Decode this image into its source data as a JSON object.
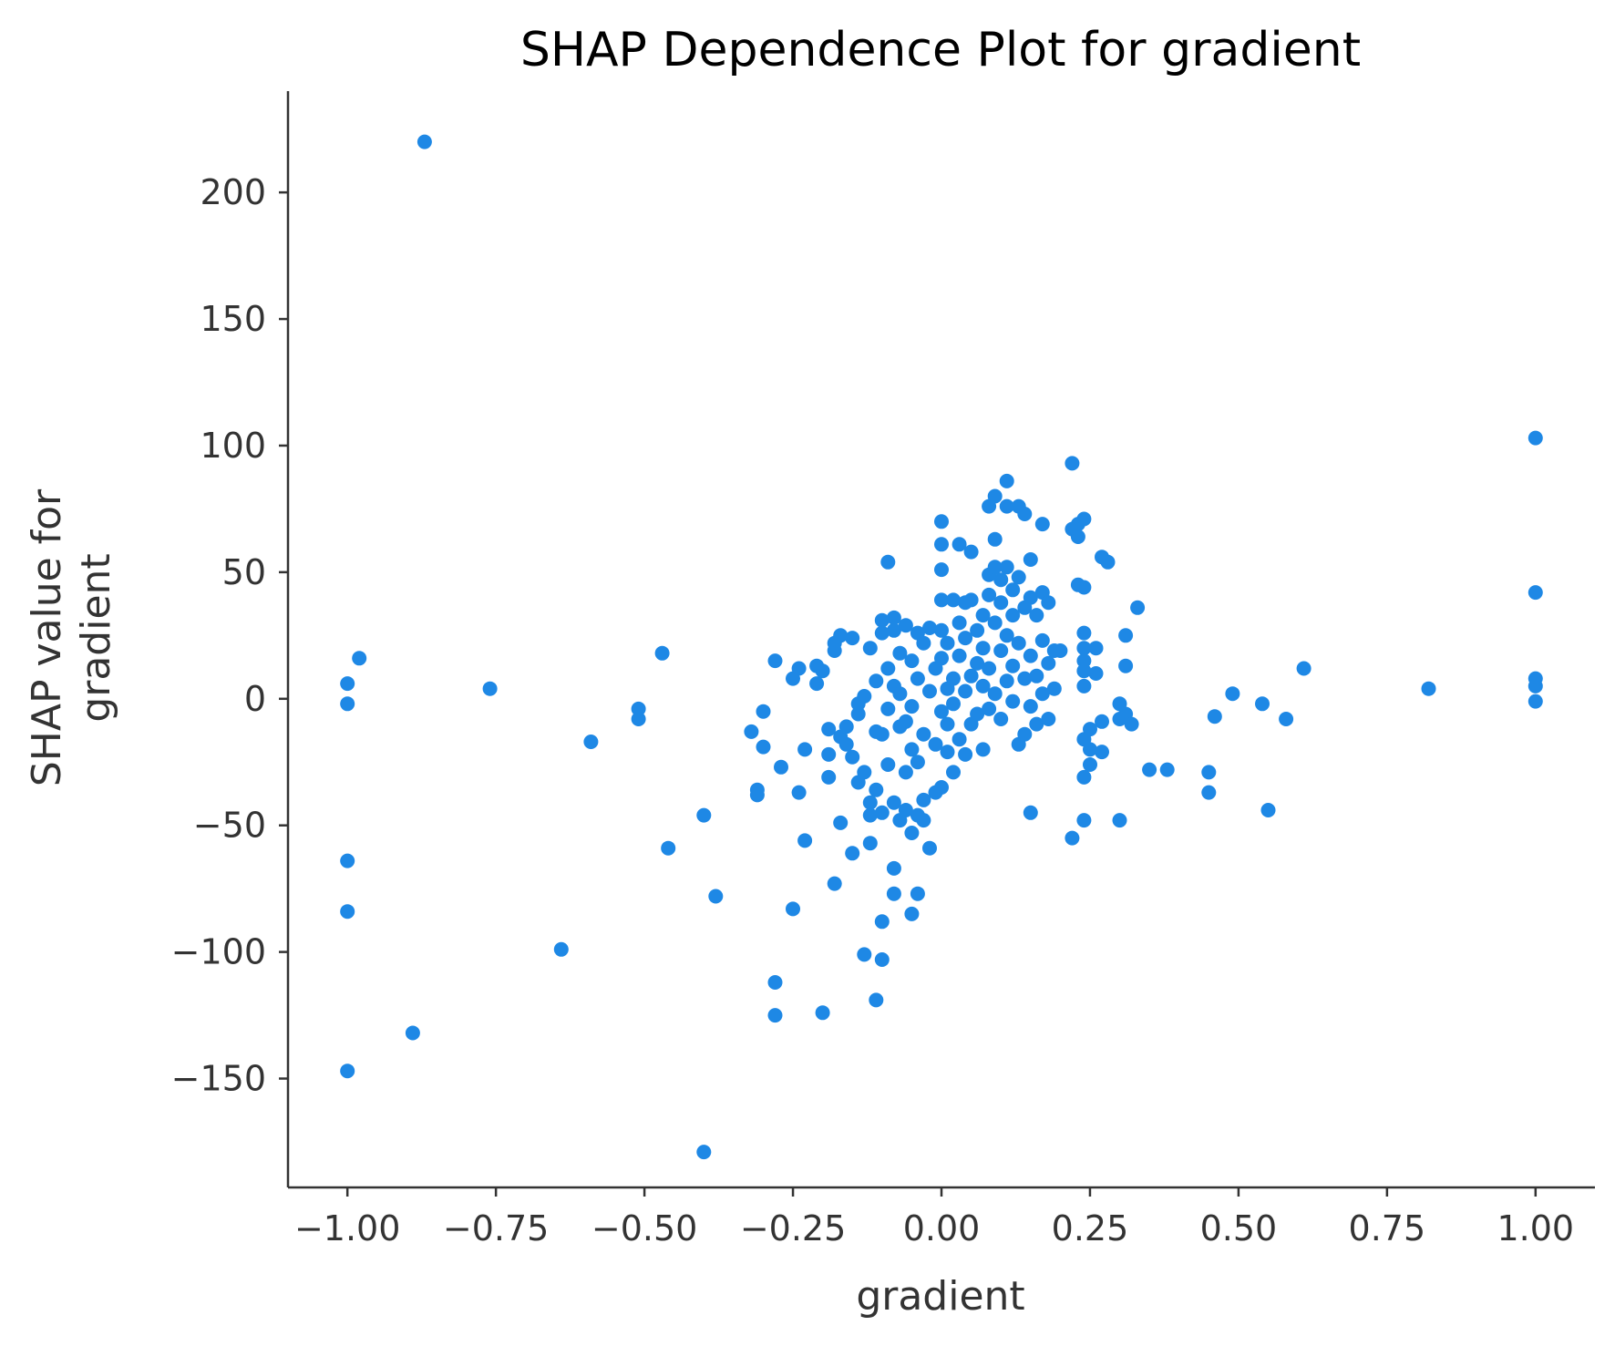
{
  "chart_data": {
    "type": "scatter",
    "title": "SHAP Dependence Plot for gradient",
    "xlabel": "gradient",
    "ylabel": [
      "SHAP value for",
      "gradient"
    ],
    "xlim": [
      -1.1,
      1.1
    ],
    "ylim": [
      -193,
      240
    ],
    "xticks": [
      -1.0,
      -0.75,
      -0.5,
      -0.25,
      0.0,
      0.25,
      0.5,
      0.75,
      1.0
    ],
    "xtick_labels": [
      "−1.00",
      "−0.75",
      "−0.50",
      "−0.25",
      "0.00",
      "0.25",
      "0.50",
      "0.75",
      "1.00"
    ],
    "yticks": [
      -150,
      -100,
      -50,
      0,
      50,
      100,
      150,
      200
    ],
    "ytick_labels": [
      "−150",
      "−100",
      "−50",
      "0",
      "50",
      "100",
      "150",
      "200"
    ],
    "grid": false,
    "point_color": "#1e88e5",
    "axis_color": "#333333",
    "series": [
      {
        "points": [
          [
            -1.0,
            6
          ],
          [
            -1.0,
            -2
          ],
          [
            -0.98,
            16
          ],
          [
            -1.0,
            -64
          ],
          [
            -1.0,
            -84
          ],
          [
            -1.0,
            -147
          ],
          [
            -0.87,
            220
          ],
          [
            -0.89,
            -132
          ],
          [
            -0.76,
            4
          ],
          [
            -0.64,
            -99
          ],
          [
            -0.59,
            -17
          ],
          [
            -0.51,
            -4
          ],
          [
            -0.51,
            -8
          ],
          [
            -0.47,
            18
          ],
          [
            -0.46,
            -59
          ],
          [
            -0.4,
            -46
          ],
          [
            -0.4,
            -179
          ],
          [
            -0.38,
            -78
          ],
          [
            -0.32,
            -13
          ],
          [
            -0.31,
            -36
          ],
          [
            -0.31,
            -38
          ],
          [
            -0.3,
            -5
          ],
          [
            -0.3,
            -19
          ],
          [
            -0.28,
            15
          ],
          [
            -0.28,
            -112
          ],
          [
            -0.28,
            -125
          ],
          [
            -0.27,
            -27
          ],
          [
            -0.25,
            8
          ],
          [
            -0.25,
            -83
          ],
          [
            -0.24,
            12
          ],
          [
            -0.24,
            -37
          ],
          [
            -0.23,
            -20
          ],
          [
            -0.23,
            -56
          ],
          [
            -0.21,
            13
          ],
          [
            -0.21,
            6
          ],
          [
            -0.2,
            -124
          ],
          [
            -0.2,
            11
          ],
          [
            -0.19,
            -12
          ],
          [
            -0.19,
            -22
          ],
          [
            -0.19,
            -31
          ],
          [
            -0.18,
            -73
          ],
          [
            -0.18,
            22
          ],
          [
            -0.18,
            19
          ],
          [
            -0.17,
            25
          ],
          [
            -0.17,
            -15
          ],
          [
            -0.17,
            -49
          ],
          [
            -0.16,
            -11
          ],
          [
            -0.16,
            -18
          ],
          [
            -0.15,
            -23
          ],
          [
            -0.15,
            24
          ],
          [
            -0.15,
            -61
          ],
          [
            -0.14,
            -6
          ],
          [
            -0.14,
            -33
          ],
          [
            -0.14,
            -2
          ],
          [
            -0.13,
            -101
          ],
          [
            -0.13,
            -29
          ],
          [
            -0.13,
            1
          ],
          [
            -0.12,
            -46
          ],
          [
            -0.12,
            20
          ],
          [
            -0.12,
            -41
          ],
          [
            -0.12,
            -57
          ],
          [
            -0.11,
            -119
          ],
          [
            -0.11,
            -36
          ],
          [
            -0.11,
            -13
          ],
          [
            -0.11,
            7
          ],
          [
            -0.1,
            -88
          ],
          [
            -0.1,
            -103
          ],
          [
            -0.1,
            26
          ],
          [
            -0.1,
            31
          ],
          [
            -0.1,
            -45
          ],
          [
            -0.1,
            -14
          ],
          [
            -0.09,
            54
          ],
          [
            -0.09,
            12
          ],
          [
            -0.09,
            -26
          ],
          [
            -0.09,
            -4
          ],
          [
            -0.08,
            32
          ],
          [
            -0.08,
            27
          ],
          [
            -0.08,
            -67
          ],
          [
            -0.08,
            -77
          ],
          [
            -0.08,
            -41
          ],
          [
            -0.08,
            5
          ],
          [
            -0.07,
            -11
          ],
          [
            -0.07,
            -48
          ],
          [
            -0.07,
            18
          ],
          [
            -0.07,
            2
          ],
          [
            -0.06,
            29
          ],
          [
            -0.06,
            -44
          ],
          [
            -0.06,
            -29
          ],
          [
            -0.06,
            -9
          ],
          [
            -0.05,
            -85
          ],
          [
            -0.05,
            -53
          ],
          [
            -0.05,
            15
          ],
          [
            -0.05,
            -3
          ],
          [
            -0.05,
            -20
          ],
          [
            -0.04,
            -46
          ],
          [
            -0.04,
            -77
          ],
          [
            -0.04,
            26
          ],
          [
            -0.04,
            8
          ],
          [
            -0.04,
            -25
          ],
          [
            -0.03,
            -48
          ],
          [
            -0.03,
            -40
          ],
          [
            -0.03,
            22
          ],
          [
            -0.03,
            -14
          ],
          [
            -0.02,
            -59
          ],
          [
            -0.02,
            3
          ],
          [
            -0.02,
            28
          ],
          [
            -0.01,
            -37
          ],
          [
            -0.01,
            -18
          ],
          [
            -0.01,
            12
          ],
          [
            0.0,
            70
          ],
          [
            0.0,
            61
          ],
          [
            0.0,
            51
          ],
          [
            0.0,
            39
          ],
          [
            0.0,
            -35
          ],
          [
            0.0,
            27
          ],
          [
            0.0,
            -5
          ],
          [
            0.0,
            16
          ],
          [
            0.01,
            -10
          ],
          [
            0.01,
            22
          ],
          [
            0.01,
            4
          ],
          [
            0.01,
            -21
          ],
          [
            0.02,
            -29
          ],
          [
            0.02,
            39
          ],
          [
            0.02,
            8
          ],
          [
            0.02,
            -2
          ],
          [
            0.03,
            61
          ],
          [
            0.03,
            30
          ],
          [
            0.03,
            -16
          ],
          [
            0.03,
            17
          ],
          [
            0.04,
            38
          ],
          [
            0.04,
            24
          ],
          [
            0.04,
            3
          ],
          [
            0.04,
            -22
          ],
          [
            0.05,
            58
          ],
          [
            0.05,
            39
          ],
          [
            0.05,
            9
          ],
          [
            0.05,
            -10
          ],
          [
            0.06,
            27
          ],
          [
            0.06,
            -6
          ],
          [
            0.06,
            14
          ],
          [
            0.07,
            33
          ],
          [
            0.07,
            -20
          ],
          [
            0.07,
            5
          ],
          [
            0.07,
            20
          ],
          [
            0.08,
            76
          ],
          [
            0.08,
            49
          ],
          [
            0.08,
            41
          ],
          [
            0.08,
            -4
          ],
          [
            0.08,
            12
          ],
          [
            0.09,
            80
          ],
          [
            0.09,
            63
          ],
          [
            0.09,
            52
          ],
          [
            0.09,
            30
          ],
          [
            0.09,
            2
          ],
          [
            0.1,
            47
          ],
          [
            0.1,
            38
          ],
          [
            0.1,
            19
          ],
          [
            0.1,
            -8
          ],
          [
            0.11,
            86
          ],
          [
            0.11,
            76
          ],
          [
            0.11,
            52
          ],
          [
            0.11,
            25
          ],
          [
            0.11,
            7
          ],
          [
            0.12,
            43
          ],
          [
            0.12,
            33
          ],
          [
            0.12,
            -1
          ],
          [
            0.12,
            13
          ],
          [
            0.13,
            76
          ],
          [
            0.13,
            48
          ],
          [
            0.13,
            -18
          ],
          [
            0.13,
            22
          ],
          [
            0.14,
            73
          ],
          [
            0.14,
            36
          ],
          [
            0.14,
            -14
          ],
          [
            0.14,
            8
          ],
          [
            0.15,
            55
          ],
          [
            0.15,
            40
          ],
          [
            0.15,
            -45
          ],
          [
            0.15,
            17
          ],
          [
            0.15,
            -3
          ],
          [
            0.16,
            33
          ],
          [
            0.16,
            9
          ],
          [
            0.16,
            -10
          ],
          [
            0.17,
            69
          ],
          [
            0.17,
            42
          ],
          [
            0.17,
            23
          ],
          [
            0.17,
            2
          ],
          [
            0.18,
            38
          ],
          [
            0.18,
            14
          ],
          [
            0.18,
            -8
          ],
          [
            0.19,
            19
          ],
          [
            0.19,
            4
          ],
          [
            0.2,
            19
          ],
          [
            0.22,
            93
          ],
          [
            0.22,
            67
          ],
          [
            0.22,
            -55
          ],
          [
            0.23,
            69
          ],
          [
            0.23,
            45
          ],
          [
            0.23,
            64
          ],
          [
            0.24,
            71
          ],
          [
            0.24,
            44
          ],
          [
            0.24,
            26
          ],
          [
            0.24,
            20
          ],
          [
            0.24,
            15
          ],
          [
            0.24,
            11
          ],
          [
            0.24,
            5
          ],
          [
            0.24,
            -16
          ],
          [
            0.24,
            -31
          ],
          [
            0.24,
            -48
          ],
          [
            0.25,
            -12
          ],
          [
            0.25,
            -26
          ],
          [
            0.25,
            -20
          ],
          [
            0.26,
            20
          ],
          [
            0.26,
            10
          ],
          [
            0.27,
            56
          ],
          [
            0.27,
            -9
          ],
          [
            0.27,
            -21
          ],
          [
            0.28,
            54
          ],
          [
            0.3,
            -2
          ],
          [
            0.3,
            -8
          ],
          [
            0.3,
            -48
          ],
          [
            0.31,
            13
          ],
          [
            0.31,
            25
          ],
          [
            0.31,
            -6
          ],
          [
            0.32,
            -10
          ],
          [
            0.33,
            36
          ],
          [
            0.35,
            -28
          ],
          [
            0.38,
            -28
          ],
          [
            0.45,
            -37
          ],
          [
            0.45,
            -29
          ],
          [
            0.46,
            -7
          ],
          [
            0.49,
            2
          ],
          [
            0.54,
            -2
          ],
          [
            0.55,
            -44
          ],
          [
            0.58,
            -8
          ],
          [
            0.61,
            12
          ],
          [
            0.82,
            4
          ],
          [
            1.0,
            103
          ],
          [
            1.0,
            42
          ],
          [
            1.0,
            8
          ],
          [
            1.0,
            5
          ],
          [
            1.0,
            -1
          ]
        ]
      }
    ]
  }
}
